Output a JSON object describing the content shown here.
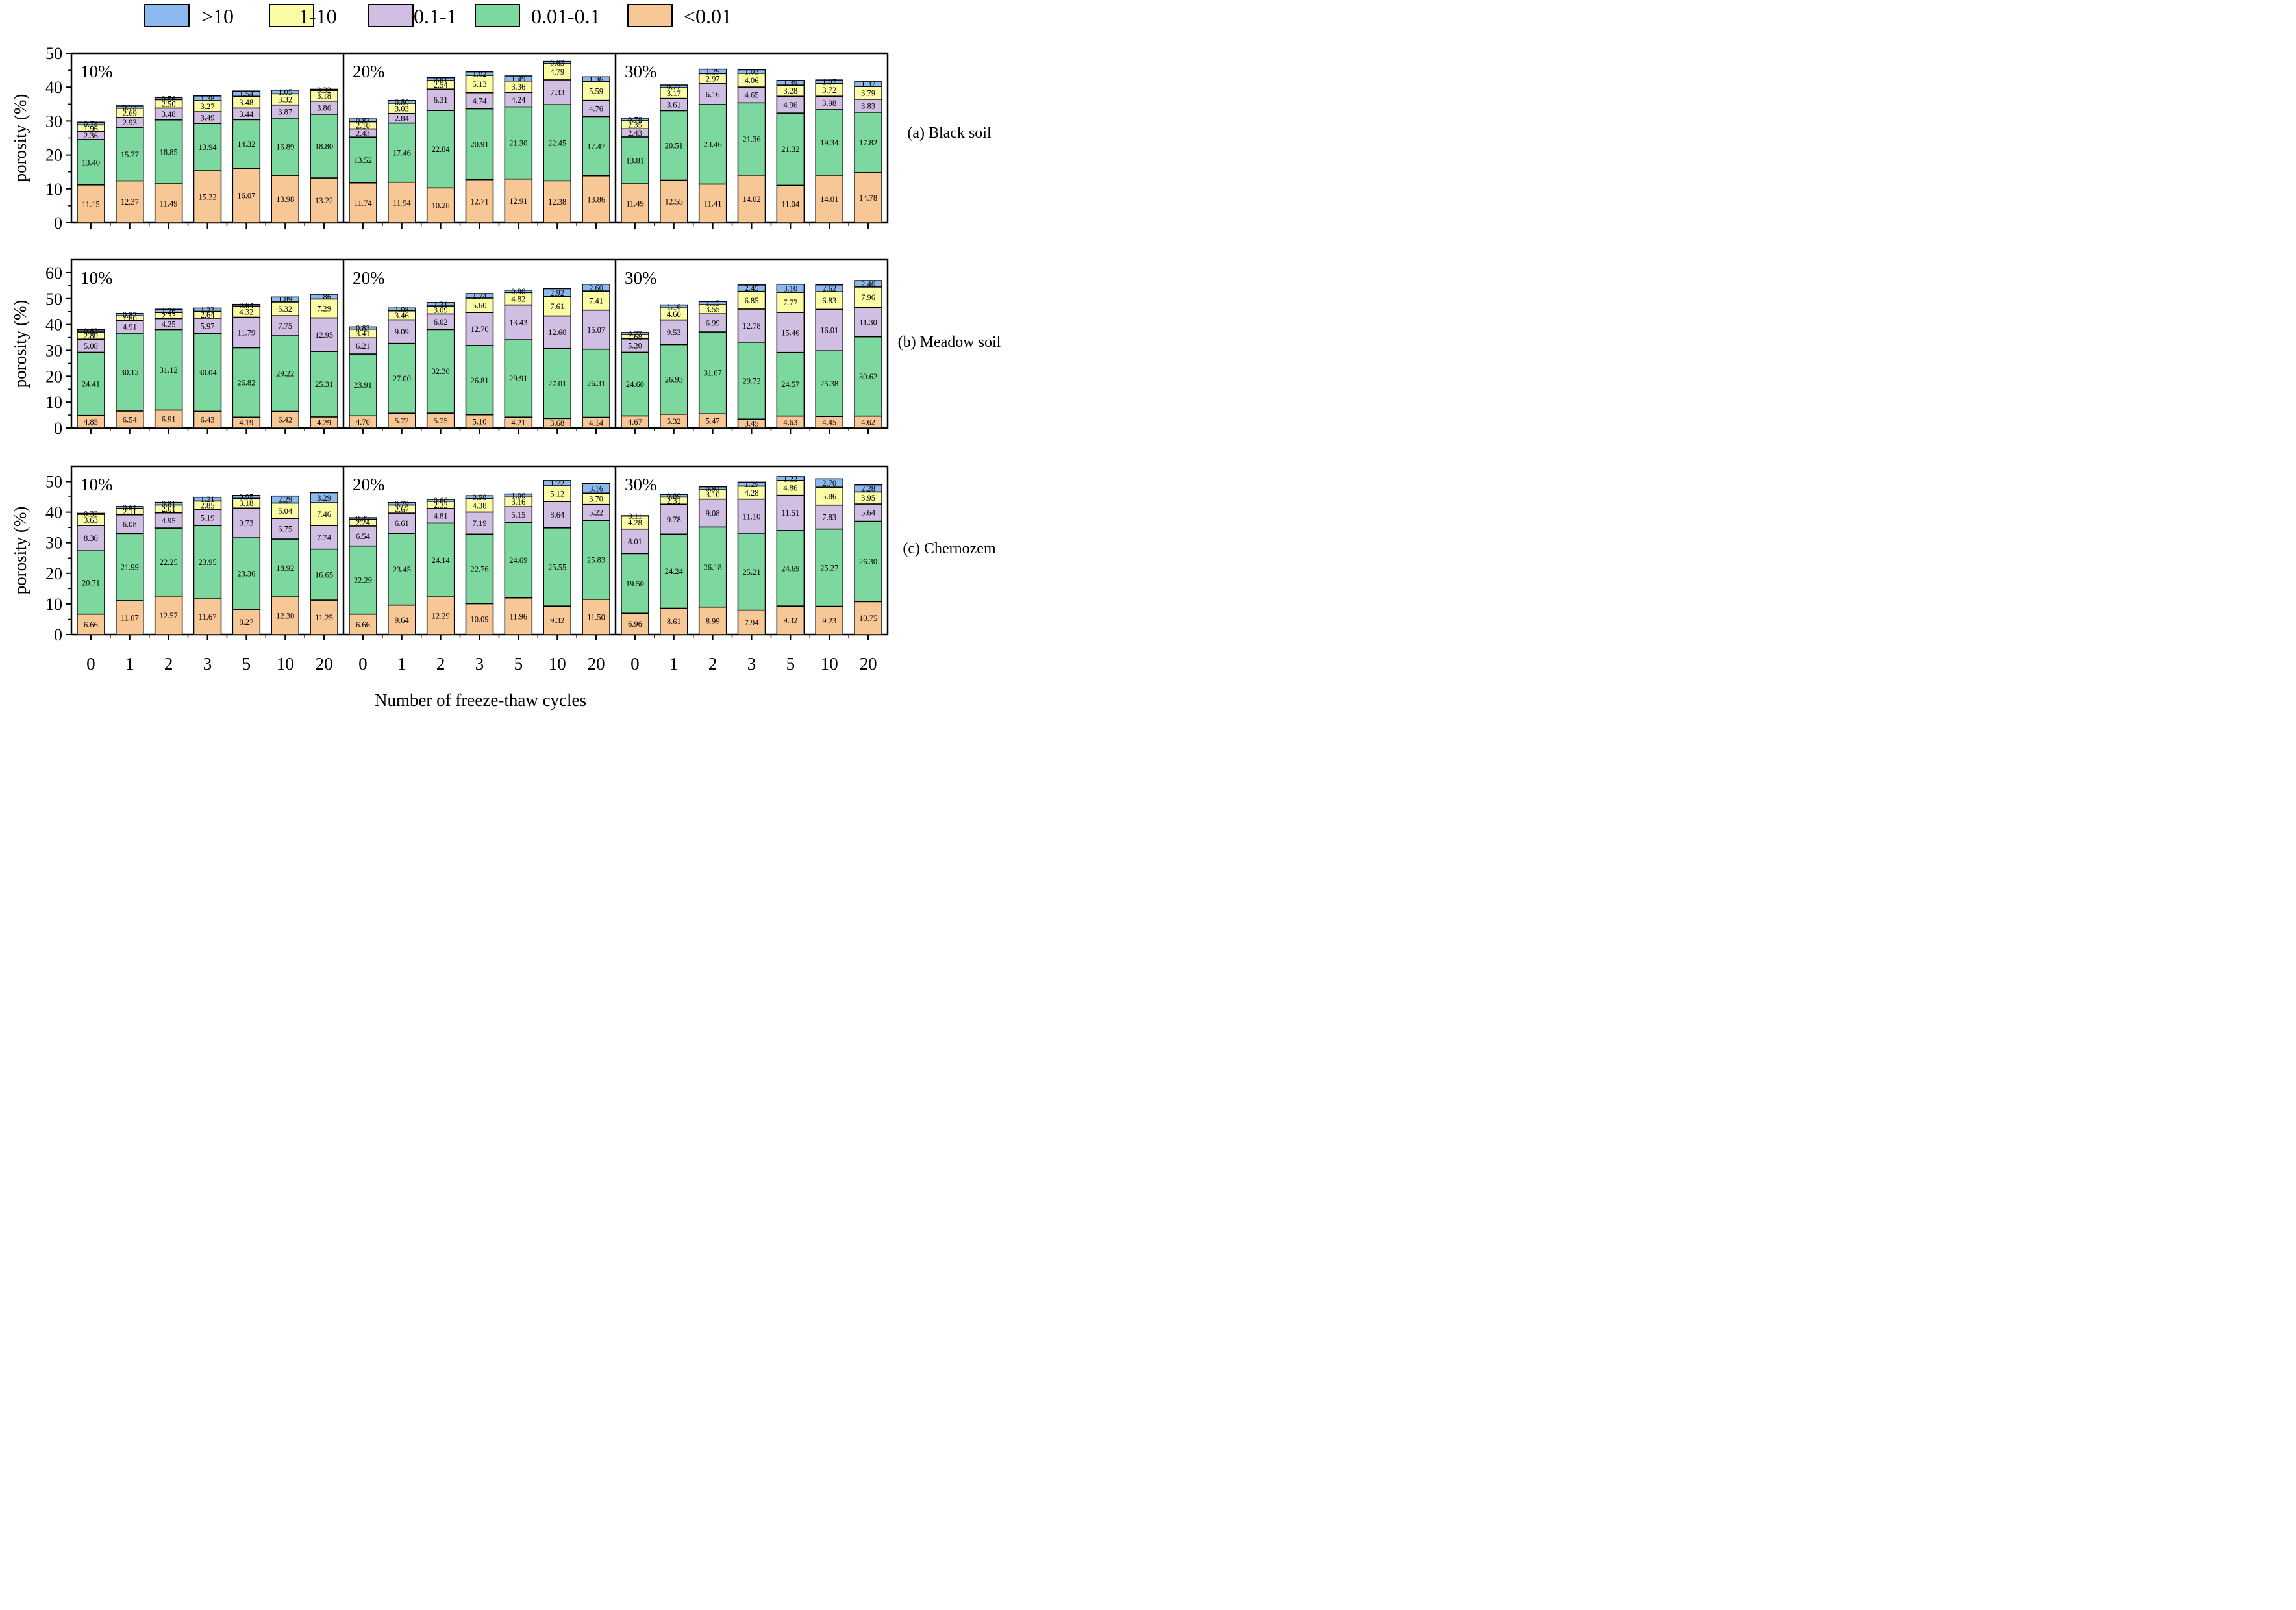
{
  "chart_data": {
    "type": "bar",
    "stacked": true,
    "legend": {
      "placement": "top",
      "entries": [
        {
          "key": "gt10",
          "label": ">10",
          "color": "#8DB9F1"
        },
        {
          "key": "r1_10",
          "label": "1-10",
          "color": "#FCFCA6"
        },
        {
          "key": "r01_1",
          "label": "0.1-1",
          "color": "#D1BFE3"
        },
        {
          "key": "r001_01",
          "label": "0.01-0.1",
          "color": "#7DD89F"
        },
        {
          "key": "lt001",
          "label": "<0.01",
          "color": "#F8C796"
        }
      ]
    },
    "xlabel": "Number of freeze-thaw cycles",
    "ylabel": "porosity (%)",
    "cycles": [
      "0",
      "1",
      "2",
      "3",
      "5",
      "10",
      "20"
    ],
    "group_labels": [
      "10%",
      "20%",
      "30%"
    ],
    "stack_order_bottom_to_top": [
      "<0.01",
      "0.01-0.1",
      "0.1-1",
      "1-10",
      ">10"
    ],
    "panels": [
      {
        "label": "(a) Black soil",
        "ylim": [
          0,
          50
        ],
        "yticks": [
          0,
          10,
          20,
          30,
          40,
          50
        ],
        "groups": [
          {
            "label": "10%",
            "bars": [
              [
                11.15,
                13.4,
                2.36,
                1.96,
                0.78
              ],
              [
                12.37,
                15.77,
                2.93,
                2.69,
                0.73
              ],
              [
                11.49,
                18.85,
                3.48,
                2.5,
                0.56
              ],
              [
                15.32,
                13.94,
                3.49,
                3.27,
                1.38
              ],
              [
                16.07,
                14.32,
                3.44,
                3.48,
                1.54
              ],
              [
                13.98,
                16.89,
                3.87,
                3.32,
                1.05
              ],
              [
                13.22,
                18.8,
                3.86,
                3.18,
                0.32
              ]
            ]
          },
          {
            "label": "20%",
            "bars": [
              [
                11.74,
                13.52,
                2.43,
                2.1,
                0.83
              ],
              [
                11.94,
                17.46,
                2.84,
                3.03,
                0.8
              ],
              [
                10.28,
                22.84,
                6.31,
                2.54,
                0.81
              ],
              [
                12.71,
                20.91,
                4.74,
                5.13,
                1.02
              ],
              [
                12.91,
                21.3,
                4.24,
                3.36,
                1.49
              ],
              [
                12.38,
                22.45,
                7.33,
                4.79,
                0.63
              ],
              [
                13.86,
                17.47,
                4.76,
                5.59,
                1.36
              ]
            ]
          },
          {
            "label": "30%",
            "bars": [
              [
                11.49,
                13.81,
                2.43,
                2.35,
                0.78
              ],
              [
                12.55,
                20.51,
                3.61,
                3.17,
                0.77
              ],
              [
                11.41,
                23.46,
                6.16,
                2.97,
                1.29
              ],
              [
                14.02,
                21.36,
                4.65,
                4.06,
                1.03
              ],
              [
                11.04,
                21.32,
                4.96,
                3.28,
                1.39
              ],
              [
                14.01,
                19.34,
                3.98,
                3.72,
                1.07
              ],
              [
                14.78,
                17.82,
                3.83,
                3.79,
                1.37
              ]
            ]
          }
        ]
      },
      {
        "label": "(b) Meadow soil",
        "ylim": [
          0,
          65
        ],
        "yticks": [
          0,
          10,
          20,
          30,
          40,
          50,
          60
        ],
        "groups": [
          {
            "label": "10%",
            "bars": [
              [
                4.85,
                24.41,
                5.08,
                2.8,
                0.83
              ],
              [
                6.54,
                30.12,
                4.91,
                1.8,
                0.87
              ],
              [
                6.91,
                31.12,
                4.25,
                2.33,
                1.26
              ],
              [
                6.43,
                30.04,
                5.97,
                2.64,
                1.23
              ],
              [
                4.19,
                26.82,
                11.79,
                4.32,
                0.64
              ],
              [
                6.42,
                29.22,
                7.75,
                5.32,
                1.89
              ],
              [
                4.29,
                25.31,
                12.95,
                7.29,
                1.86
              ]
            ]
          },
          {
            "label": "20%",
            "bars": [
              [
                4.7,
                23.91,
                6.21,
                3.41,
                0.83
              ],
              [
                5.72,
                27.0,
                9.09,
                3.46,
                1.08
              ],
              [
                5.75,
                32.3,
                6.02,
                3.09,
                1.31
              ],
              [
                5.1,
                26.81,
                12.7,
                5.6,
                1.74
              ],
              [
                4.21,
                29.91,
                13.43,
                4.82,
                0.9
              ],
              [
                3.68,
                27.01,
                12.6,
                7.61,
                2.92
              ],
              [
                4.14,
                26.31,
                15.07,
                7.41,
                2.6
              ]
            ]
          },
          {
            "label": "30%",
            "bars": [
              [
                4.67,
                24.6,
                5.2,
                1.68,
                0.77
              ],
              [
                5.32,
                26.93,
                9.53,
                4.6,
                1.16
              ],
              [
                5.47,
                31.67,
                6.99,
                3.55,
                1.15
              ],
              [
                3.45,
                29.72,
                12.78,
                6.85,
                2.45
              ],
              [
                4.63,
                24.57,
                15.46,
                7.77,
                3.1
              ],
              [
                4.45,
                25.38,
                16.01,
                6.83,
                2.62
              ],
              [
                4.62,
                30.62,
                11.3,
                7.96,
                2.46
              ]
            ]
          }
        ]
      },
      {
        "label": "(c) Chernozem",
        "ylim": [
          0,
          55
        ],
        "yticks": [
          0,
          10,
          20,
          30,
          40,
          50
        ],
        "groups": [
          {
            "label": "10%",
            "bars": [
              [
                6.66,
                20.71,
                8.3,
                3.63,
                0.32
              ],
              [
                11.07,
                21.99,
                6.08,
                2.11,
                0.61
              ],
              [
                12.57,
                22.25,
                4.95,
                2.61,
                0.81
              ],
              [
                11.67,
                23.95,
                5.19,
                2.85,
                1.21
              ],
              [
                8.27,
                23.36,
                9.73,
                3.18,
                0.95
              ],
              [
                12.3,
                18.92,
                6.75,
                5.04,
                2.29
              ],
              [
                11.25,
                16.65,
                7.74,
                7.46,
                3.29
              ]
            ]
          },
          {
            "label": "20%",
            "bars": [
              [
                6.66,
                22.29,
                6.54,
                2.24,
                0.47
              ],
              [
                9.64,
                23.45,
                6.61,
                2.67,
                0.79
              ],
              [
                12.29,
                24.14,
                4.81,
                2.33,
                0.6
              ],
              [
                10.09,
                22.76,
                7.19,
                4.38,
                0.98
              ],
              [
                11.96,
                24.69,
                5.15,
                3.16,
                1.0
              ],
              [
                9.32,
                25.55,
                8.64,
                5.12,
                1.72
              ],
              [
                11.5,
                25.83,
                5.22,
                3.7,
                3.16
              ]
            ]
          },
          {
            "label": "30%",
            "bars": [
              [
                6.96,
                19.5,
                8.01,
                4.28,
                0.11
              ],
              [
                8.61,
                24.24,
                9.78,
                2.31,
                0.89
              ],
              [
                8.99,
                26.18,
                9.08,
                3.1,
                0.93
              ],
              [
                7.94,
                25.21,
                11.1,
                4.28,
                1.29
              ],
              [
                9.32,
                24.69,
                11.51,
                4.86,
                1.22
              ],
              [
                9.23,
                25.27,
                7.83,
                5.86,
                2.7
              ],
              [
                10.75,
                26.3,
                5.64,
                3.95,
                2.28
              ]
            ]
          }
        ]
      }
    ]
  }
}
